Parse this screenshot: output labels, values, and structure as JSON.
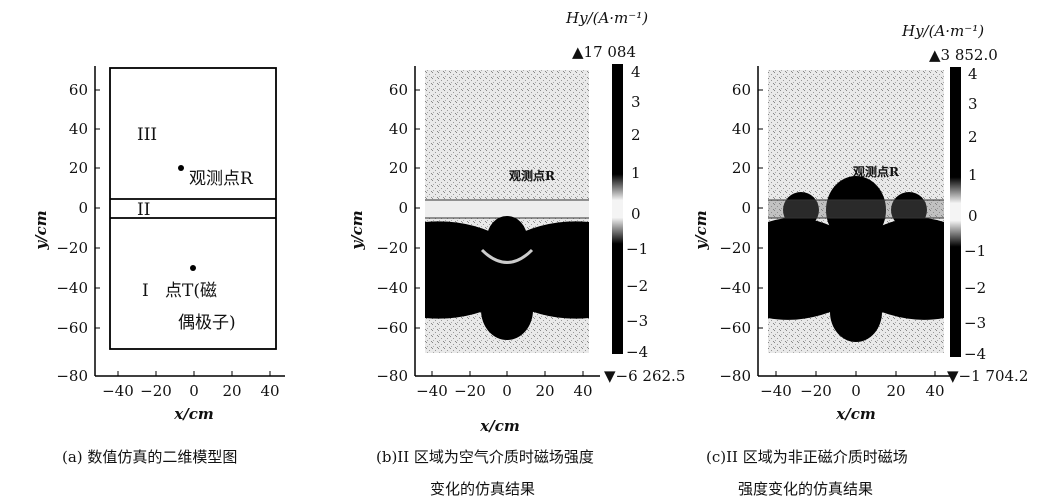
{
  "panels": [
    {
      "id": "a",
      "caption": [
        "(a) 数值仿真的二维模型图"
      ],
      "region_labels": {
        "r3": "III",
        "r2": "II",
        "r1": "I",
        "pointR": "观测点R",
        "pointT1": "点T(磁",
        "pointT2": "偶极子)"
      }
    },
    {
      "id": "b",
      "caption": [
        "(b)II 区域为空气介质时磁场强度",
        "变化的仿真结果"
      ],
      "colorbar": {
        "title": "Hy/(A·m⁻¹)",
        "max_label": "▲17 084",
        "min_label": "▼−6 262.5",
        "ticks": [
          "4",
          "3",
          "2",
          "1",
          "0",
          "−1",
          "−2",
          "−3",
          "−4"
        ]
      },
      "point_label": "观测点R"
    },
    {
      "id": "c",
      "caption": [
        "(c)II 区域为非正磁介质时磁场",
        "强度变化的仿真结果"
      ],
      "colorbar": {
        "title": "Hy/(A·m⁻¹)",
        "max_label": "▲3 852.0",
        "min_label": "▼−1 704.2",
        "ticks": [
          "4",
          "3",
          "2",
          "1",
          "0",
          "−1",
          "−2",
          "−3",
          "−4"
        ]
      },
      "point_label": "观测点R"
    }
  ],
  "axes": {
    "xlabel": "x/cm",
    "ylabel": "y/cm",
    "x_ticks": [
      "−40",
      "−20",
      "0",
      "20",
      "40"
    ],
    "y_ticks": [
      "60",
      "40",
      "20",
      "0",
      "−20",
      "−40",
      "−60",
      "−80"
    ],
    "xlim": [
      -50,
      50
    ],
    "ylim": [
      -80,
      75
    ]
  }
}
